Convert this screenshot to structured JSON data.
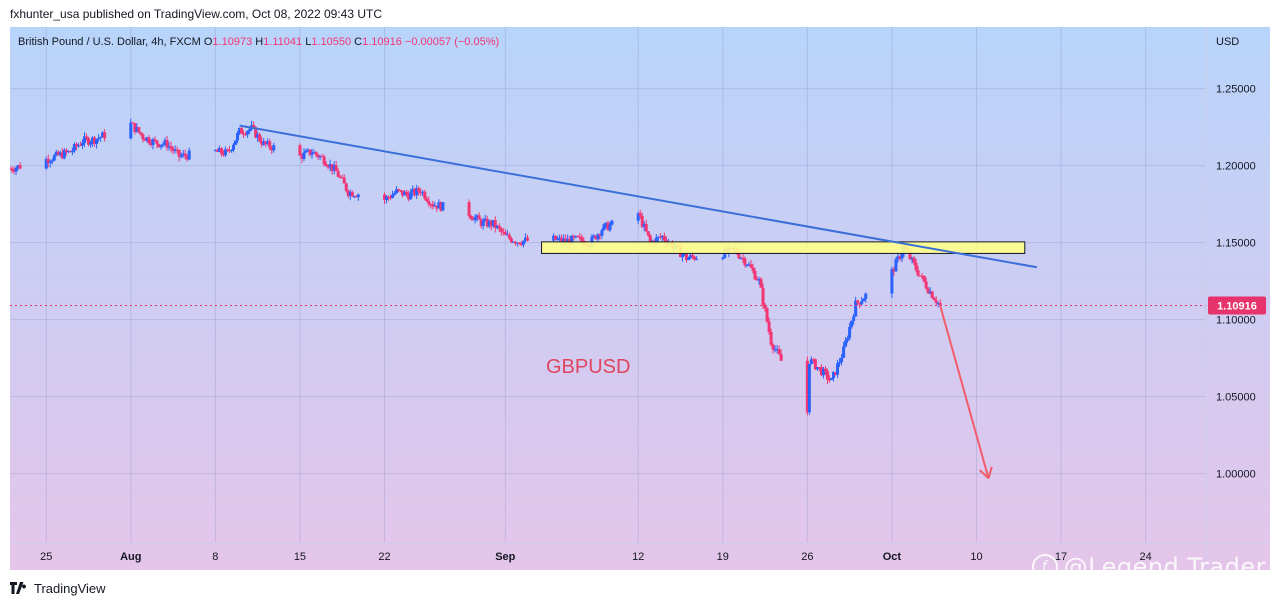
{
  "header": {
    "publisher_line": "fxhunter_usa published on TradingView.com, Oct 08, 2022 09:43 UTC"
  },
  "footer": {
    "brand": "TradingView",
    "watermark": "@Legend Trader"
  },
  "colors": {
    "up": "#2962ff",
    "down": "#f23674",
    "trendline": "#3b6fd8",
    "zone_fill": "#ffff8a",
    "arrow": "#f25c6b",
    "price_line": "#e6336c",
    "price_badge": "#e6336c",
    "symbol_text": "#e0445e"
  },
  "chart_data": {
    "type": "candlestick",
    "symbol_line": {
      "name": "British Pound / U.S. Dollar, 4h, FXCM",
      "open_label": "O",
      "open": "1.10973",
      "high_label": "H",
      "high": "1.11041",
      "low_label": "L",
      "low": "1.10550",
      "close_label": "C",
      "close": "1.10916",
      "change": "−0.00057 (−0.05%)"
    },
    "currency": "USD",
    "last_price": "1.10916",
    "annotation": "GBPUSD",
    "y_ticks": [
      "1.25000",
      "1.20000",
      "1.15000",
      "1.10000",
      "1.05000",
      "1.00000"
    ],
    "y_range": [
      0.955,
      1.29
    ],
    "x_ticks": [
      "25",
      "Aug",
      "8",
      "15",
      "22",
      "Sep",
      "12",
      "19",
      "26",
      "Oct",
      "10",
      "17",
      "24"
    ],
    "x_tick_bold": [
      "Aug",
      "Sep",
      "Oct"
    ],
    "x_range": [
      "2022-07-22",
      "2022-10-29"
    ],
    "close_path": [
      [
        "2022-07-22",
        1.198
      ],
      [
        "2022-07-25",
        1.204
      ],
      [
        "2022-07-27",
        1.209
      ],
      [
        "2022-07-28",
        1.216
      ],
      [
        "2022-07-29",
        1.217
      ],
      [
        "2022-08-01",
        1.227
      ],
      [
        "2022-08-02",
        1.219
      ],
      [
        "2022-08-03",
        1.215
      ],
      [
        "2022-08-04",
        1.214
      ],
      [
        "2022-08-05",
        1.206
      ],
      [
        "2022-08-08",
        1.209
      ],
      [
        "2022-08-09",
        1.208
      ],
      [
        "2022-08-10",
        1.222
      ],
      [
        "2022-08-11",
        1.224
      ],
      [
        "2022-08-12",
        1.214
      ],
      [
        "2022-08-15",
        1.206
      ],
      [
        "2022-08-16",
        1.209
      ],
      [
        "2022-08-17",
        1.204
      ],
      [
        "2022-08-18",
        1.196
      ],
      [
        "2022-08-19",
        1.183
      ],
      [
        "2022-08-22",
        1.178
      ],
      [
        "2022-08-23",
        1.183
      ],
      [
        "2022-08-24",
        1.181
      ],
      [
        "2022-08-25",
        1.184
      ],
      [
        "2022-08-26",
        1.175
      ],
      [
        "2022-08-29",
        1.169
      ],
      [
        "2022-08-30",
        1.163
      ],
      [
        "2022-08-31",
        1.162
      ],
      [
        "2022-09-01",
        1.154
      ],
      [
        "2022-09-02",
        1.151
      ],
      [
        "2022-09-05",
        1.152
      ],
      [
        "2022-09-06",
        1.151
      ],
      [
        "2022-09-07",
        1.152
      ],
      [
        "2022-09-08",
        1.15
      ],
      [
        "2022-09-09",
        1.159
      ],
      [
        "2022-09-12",
        1.169
      ],
      [
        "2022-09-13",
        1.15
      ],
      [
        "2022-09-14",
        1.154
      ],
      [
        "2022-09-15",
        1.147
      ],
      [
        "2022-09-16",
        1.14
      ],
      [
        "2022-09-19",
        1.143
      ],
      [
        "2022-09-20",
        1.145
      ],
      [
        "2022-09-21",
        1.137
      ],
      [
        "2022-09-22",
        1.125
      ],
      [
        "2022-09-23",
        1.086
      ],
      [
        "2022-09-26",
        1.04
      ],
      [
        "2022-09-26",
        1.075
      ],
      [
        "2022-09-27",
        1.068
      ],
      [
        "2022-09-28",
        1.06
      ],
      [
        "2022-09-29",
        1.08
      ],
      [
        "2022-09-30",
        1.11
      ],
      [
        "2022-10-03",
        1.131
      ],
      [
        "2022-10-04",
        1.147
      ],
      [
        "2022-10-05",
        1.133
      ],
      [
        "2022-10-06",
        1.12
      ],
      [
        "2022-10-07",
        1.109
      ]
    ],
    "trendline": [
      [
        "2022-08-10",
        1.226
      ],
      [
        "2022-10-15",
        1.134
      ]
    ],
    "resistance_zone": {
      "x_start": "2022-09-04",
      "x_end": "2022-10-14",
      "y_top": 1.1505,
      "y_bottom": 1.143
    },
    "projection_arrow": [
      [
        "2022-10-07",
        1.109
      ],
      [
        "2022-10-11",
        0.997
      ]
    ],
    "grid": true,
    "background_gradient": [
      "#b8d4fa",
      "#e5c5ea"
    ]
  }
}
